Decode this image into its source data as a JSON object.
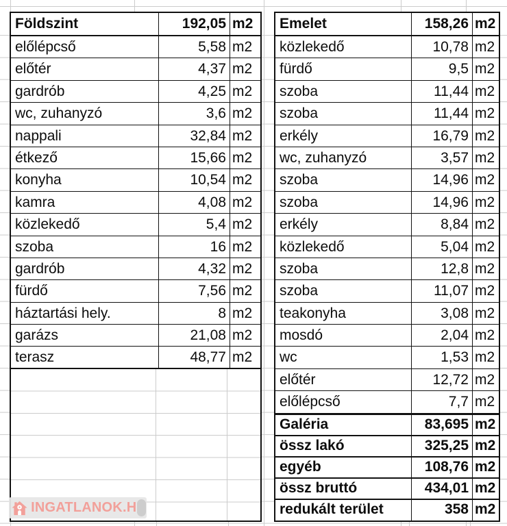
{
  "tables": [
    {
      "name": "ground-floor",
      "header": {
        "label": "Földszint",
        "value": "192,05",
        "unit": "m2"
      },
      "rows": [
        {
          "label": "előlépcső",
          "value": "5,58",
          "unit": "m2"
        },
        {
          "label": "előtér",
          "value": "4,37",
          "unit": "m2"
        },
        {
          "label": "gardrób",
          "value": "4,25",
          "unit": "m2"
        },
        {
          "label": "wc, zuhanyzó",
          "value": "3,6",
          "unit": "m2"
        },
        {
          "label": "nappali",
          "value": "32,84",
          "unit": "m2"
        },
        {
          "label": "étkező",
          "value": "15,66",
          "unit": "m2"
        },
        {
          "label": "konyha",
          "value": "10,54",
          "unit": "m2"
        },
        {
          "label": "kamra",
          "value": "4,08",
          "unit": "m2"
        },
        {
          "label": "közlekedő",
          "value": "5,4",
          "unit": "m2"
        },
        {
          "label": "szoba",
          "value": "16",
          "unit": "m2"
        },
        {
          "label": "gardrób",
          "value": "4,32",
          "unit": "m2"
        },
        {
          "label": "fürdő",
          "value": "7,56",
          "unit": "m2"
        },
        {
          "label": "háztartási hely.",
          "value": "8",
          "unit": "m2"
        },
        {
          "label": "garázs",
          "value": "21,08",
          "unit": "m2"
        },
        {
          "label": "terasz",
          "value": "48,77",
          "unit": "m2"
        }
      ],
      "totals": []
    },
    {
      "name": "upper-floor",
      "header": {
        "label": "Emelet",
        "value": "158,26",
        "unit": "m2"
      },
      "rows": [
        {
          "label": "közlekedő",
          "value": "10,78",
          "unit": "m2"
        },
        {
          "label": "fürdő",
          "value": "9,5",
          "unit": "m2"
        },
        {
          "label": "szoba",
          "value": "11,44",
          "unit": "m2"
        },
        {
          "label": "szoba",
          "value": "11,44",
          "unit": "m2"
        },
        {
          "label": "erkély",
          "value": "16,79",
          "unit": "m2"
        },
        {
          "label": "wc, zuhanyzó",
          "value": "3,57",
          "unit": "m2"
        },
        {
          "label": "szoba",
          "value": "14,96",
          "unit": "m2"
        },
        {
          "label": "szoba",
          "value": "14,96",
          "unit": "m2"
        },
        {
          "label": "erkély",
          "value": "8,84",
          "unit": "m2"
        },
        {
          "label": "közlekedő",
          "value": "5,04",
          "unit": "m2"
        },
        {
          "label": "szoba",
          "value": "12,8",
          "unit": "m2"
        },
        {
          "label": "szoba",
          "value": "11,07",
          "unit": "m2"
        },
        {
          "label": "teakonyha",
          "value": "3,08",
          "unit": "m2"
        },
        {
          "label": "mosdó",
          "value": "2,04",
          "unit": "m2"
        },
        {
          "label": "wc",
          "value": "1,53",
          "unit": "m2"
        },
        {
          "label": "előtér",
          "value": "12,72",
          "unit": "m2"
        },
        {
          "label": "előlépcső",
          "value": "7,7",
          "unit": "m2"
        }
      ],
      "totals": [
        {
          "label": "Galéria",
          "value": "83,695",
          "unit": "m2"
        },
        {
          "label": "össz lakó",
          "value": "325,25",
          "unit": "m2"
        },
        {
          "label": "egyéb",
          "value": "108,76",
          "unit": "m2"
        },
        {
          "label": "össz bruttó",
          "value": "434,01",
          "unit": "m2"
        },
        {
          "label": "redukált terület",
          "value": "358",
          "unit": "m2"
        }
      ]
    }
  ],
  "watermark": {
    "text": "INGATLANOK.HU",
    "icon": "house-icon",
    "color": "#f2a09a"
  },
  "colors": {
    "border": "#111111",
    "gridline": "#cbcbcb",
    "watermark_bg": "#e7e7e7",
    "watermark_cap": "#cdcdcd"
  }
}
